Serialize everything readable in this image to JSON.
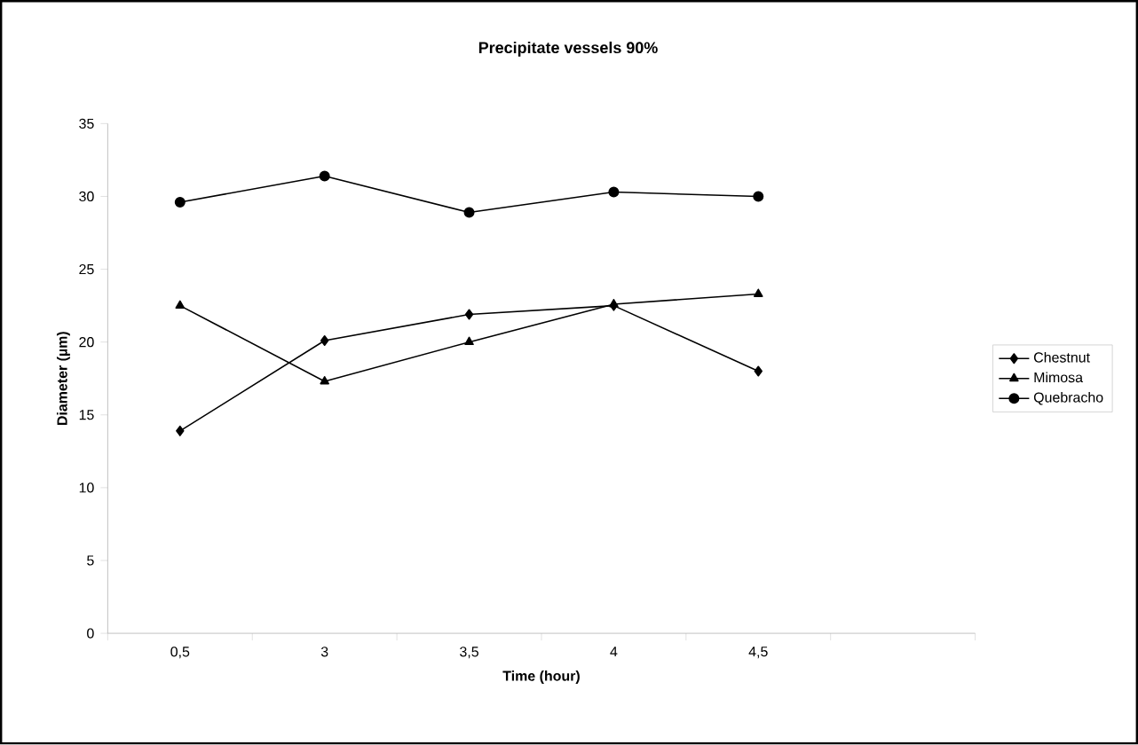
{
  "chart_data": {
    "type": "line",
    "title": "Precipitate vessels 90%",
    "xlabel": "Time (hour)",
    "ylabel": "Diameter (µm)",
    "categories": [
      "0,5",
      "3",
      "3,5",
      "4",
      "4,5",
      null
    ],
    "series": [
      {
        "name": "Chestnut",
        "color": "#000000",
        "marker": "diamond",
        "values": [
          13.9,
          20.1,
          21.9,
          22.5,
          18.0,
          null
        ]
      },
      {
        "name": "Mimosa",
        "color": "#000000",
        "marker": "triangle",
        "values": [
          22.5,
          17.3,
          20.0,
          22.6,
          23.3,
          null
        ]
      },
      {
        "name": "Quebracho",
        "color": "#000000",
        "marker": "circle",
        "values": [
          29.6,
          31.4,
          28.9,
          30.3,
          30.0,
          null
        ]
      }
    ],
    "ylim": [
      0,
      35
    ],
    "yticks": [
      0,
      5,
      10,
      15,
      20,
      25,
      30,
      35
    ],
    "grid": false,
    "legend": "right",
    "line_style": "solid"
  }
}
